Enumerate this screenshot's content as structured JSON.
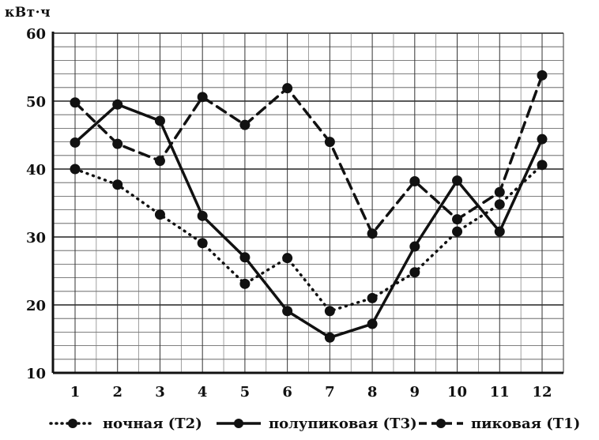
{
  "chart_data": {
    "type": "line",
    "unit_label": "кВт·ч",
    "categories": [
      "1",
      "2",
      "3",
      "4",
      "5",
      "6",
      "7",
      "8",
      "9",
      "10",
      "11",
      "12"
    ],
    "y_ticks": [
      10,
      20,
      30,
      40,
      50,
      60
    ],
    "ylim": [
      10,
      60
    ],
    "grid": true,
    "legend_position": "bottom",
    "series": [
      {
        "name": "ночная (Т2)",
        "line_style": "dotted",
        "color": "#111111",
        "values": [
          40,
          37.7,
          33.3,
          29.1,
          23.1,
          26.9,
          19.1,
          21,
          24.8,
          30.8,
          34.8,
          40.6
        ]
      },
      {
        "name": "полупиковая (Т3)",
        "line_style": "solid",
        "color": "#111111",
        "values": [
          43.9,
          49.5,
          47.1,
          33.1,
          27,
          19.1,
          15.2,
          17.2,
          28.6,
          38.3,
          30.8,
          44.4
        ]
      },
      {
        "name": "пиковая (Т1)",
        "line_style": "dashed",
        "color": "#111111",
        "values": [
          49.8,
          43.7,
          41.2,
          50.6,
          46.5,
          51.9,
          44,
          30.5,
          38.2,
          32.6,
          36.6,
          53.8
        ]
      }
    ]
  }
}
